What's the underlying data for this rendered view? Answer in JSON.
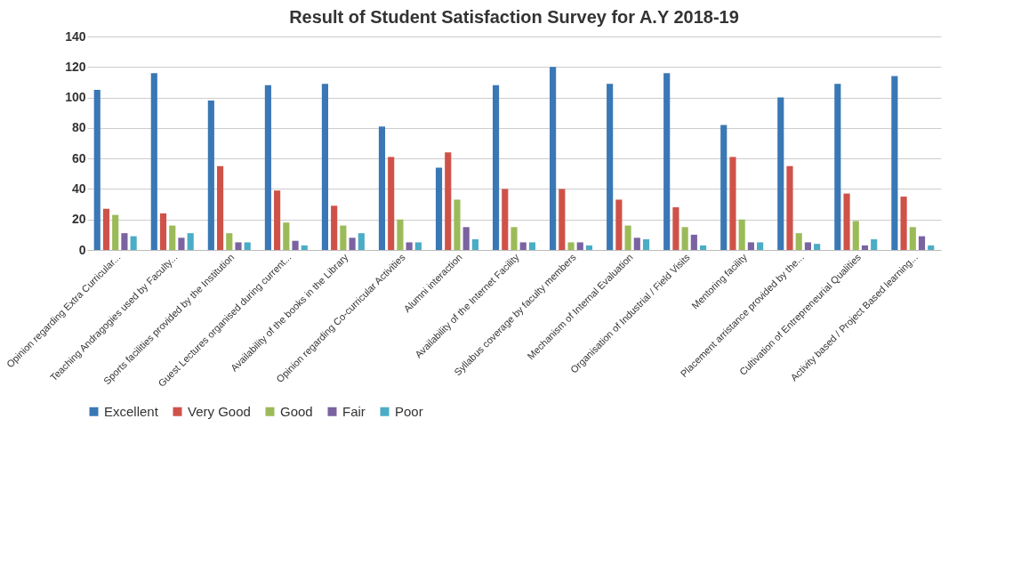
{
  "chart_data": {
    "type": "bar",
    "title": "Result of Student Satisfaction Survey for A.Y 2018-19",
    "categories": [
      "Opinion regarding Extra Curricular...",
      "Teaching Andragogies used by Faculty...",
      "Sports facilities provided by the Institution",
      "Guest Lectures organised during current...",
      "Availability of the books in the Library",
      "Opinion regarding Co-curricular Activities",
      "Alumni interaction",
      "Availability of the Internet Facility",
      "Syllabus coverage by faculty members",
      "Mechanism of Internal Evaluation",
      "Organisation of Industrial / Field Visits",
      "Mentoring facility",
      "Placement arristance provided by the...",
      "Cultivation of Entrepreneurial Qualities",
      "Activity based / Project Based learning..."
    ],
    "series": [
      {
        "name": "Excellent",
        "color": "#3a78b5",
        "values": [
          105,
          116,
          98,
          108,
          109,
          81,
          54,
          108,
          120,
          109,
          116,
          82,
          100,
          109,
          114
        ]
      },
      {
        "name": "Very Good",
        "color": "#cf5249",
        "values": [
          27,
          24,
          55,
          39,
          29,
          61,
          64,
          40,
          40,
          33,
          28,
          61,
          55,
          37,
          35
        ]
      },
      {
        "name": "Good",
        "color": "#9bbb59",
        "values": [
          23,
          16,
          11,
          18,
          16,
          20,
          33,
          15,
          5,
          16,
          15,
          20,
          11,
          19,
          15
        ]
      },
      {
        "name": "Fair",
        "color": "#7a63a0",
        "values": [
          11,
          8,
          5,
          6,
          8,
          5,
          15,
          5,
          5,
          8,
          10,
          5,
          5,
          3,
          9
        ]
      },
      {
        "name": "Poor",
        "color": "#4bacc6",
        "values": [
          9,
          11,
          5,
          3,
          11,
          5,
          7,
          5,
          3,
          7,
          3,
          5,
          4,
          7,
          3
        ]
      }
    ],
    "ylim": [
      0,
      140
    ],
    "yticks": [
      0,
      20,
      40,
      60,
      80,
      100,
      120,
      140
    ],
    "grid": "y",
    "legend": "bottom"
  }
}
